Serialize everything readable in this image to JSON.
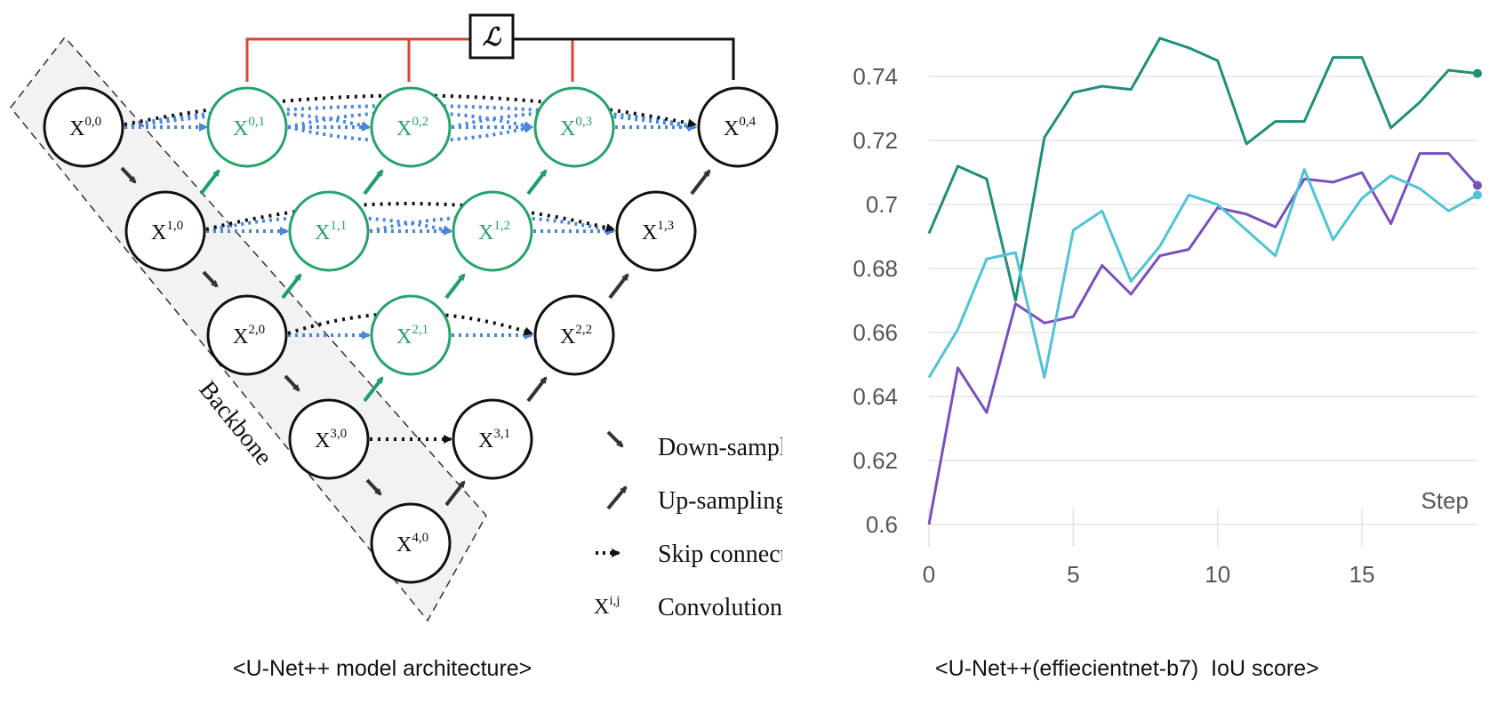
{
  "diagram": {
    "loss_symbol": "ℒ",
    "backbone_label": "Backbone",
    "nodes": [
      {
        "base": "X",
        "sup": "0,0",
        "color": "#111111"
      },
      {
        "base": "X",
        "sup": "0,1",
        "color": "#27a36a"
      },
      {
        "base": "X",
        "sup": "0,2",
        "color": "#27a36a"
      },
      {
        "base": "X",
        "sup": "0,3",
        "color": "#27a36a"
      },
      {
        "base": "X",
        "sup": "0,4",
        "color": "#111111"
      },
      {
        "base": "X",
        "sup": "1,0",
        "color": "#111111"
      },
      {
        "base": "X",
        "sup": "1,1",
        "color": "#27a36a"
      },
      {
        "base": "X",
        "sup": "1,2",
        "color": "#27a36a"
      },
      {
        "base": "X",
        "sup": "1,3",
        "color": "#111111"
      },
      {
        "base": "X",
        "sup": "2,0",
        "color": "#111111"
      },
      {
        "base": "X",
        "sup": "2,1",
        "color": "#27a36a"
      },
      {
        "base": "X",
        "sup": "2,2",
        "color": "#111111"
      },
      {
        "base": "X",
        "sup": "3,0",
        "color": "#111111"
      },
      {
        "base": "X",
        "sup": "3,1",
        "color": "#111111"
      },
      {
        "base": "X",
        "sup": "4,0",
        "color": "#111111"
      }
    ],
    "legend": [
      {
        "symbol": "down-arrow-icon",
        "label": "Down-sampling"
      },
      {
        "symbol": "up-arrow-icon",
        "label": "Up-sampling"
      },
      {
        "symbol": "skip-arrow-icon",
        "label": "Skip connection"
      },
      {
        "symbol": "X",
        "symbol_sup": "i,j",
        "label": "Convolution"
      }
    ],
    "colors": {
      "node_black": "#111111",
      "node_green": "#27a36a",
      "up_arrow": "#1f9e6a",
      "skip_blue": "#4a86e0",
      "loss_red": "#d9453b",
      "backbone_fill": "#f2f2f2"
    }
  },
  "chart_data": {
    "type": "line",
    "title": "",
    "xlabel": "Step",
    "ylabel": "",
    "xlim": [
      0,
      19
    ],
    "ylim": [
      0.6,
      0.75
    ],
    "x_ticks": [
      0,
      5,
      10,
      15
    ],
    "y_ticks": [
      0.6,
      0.62,
      0.64,
      0.66,
      0.68,
      0.7,
      0.72,
      0.74
    ],
    "y_tick_labels": [
      "0.6",
      "0.62",
      "0.64",
      "0.66",
      "0.68",
      "0.7",
      "0.72",
      "0.74"
    ],
    "grid": "horizontal",
    "series": [
      {
        "color": "#1f8f7a",
        "x": [
          0,
          1,
          2,
          3,
          4,
          5,
          6,
          7,
          8,
          9,
          10,
          11,
          12,
          13,
          14,
          15,
          16,
          17,
          18,
          19
        ],
        "values": [
          0.691,
          0.712,
          0.708,
          0.67,
          0.721,
          0.735,
          0.737,
          0.736,
          0.752,
          0.749,
          0.745,
          0.719,
          0.726,
          0.726,
          0.746,
          0.746,
          0.724,
          0.732,
          0.742,
          0.741
        ]
      },
      {
        "color": "#7a4fc0",
        "x": [
          0,
          1,
          2,
          3,
          4,
          5,
          6,
          7,
          8,
          9,
          10,
          11,
          12,
          13,
          14,
          15,
          16,
          17,
          18,
          19
        ],
        "values": [
          0.6,
          0.649,
          0.635,
          0.669,
          0.663,
          0.665,
          0.681,
          0.672,
          0.684,
          0.686,
          0.699,
          0.697,
          0.693,
          0.708,
          0.707,
          0.71,
          0.694,
          0.716,
          0.716,
          0.706
        ]
      },
      {
        "color": "#4fc3d8",
        "x": [
          0,
          1,
          2,
          3,
          4,
          5,
          6,
          7,
          8,
          9,
          10,
          11,
          12,
          13,
          14,
          15,
          16,
          17,
          18,
          19
        ],
        "values": [
          0.646,
          0.661,
          0.683,
          0.685,
          0.646,
          0.692,
          0.698,
          0.676,
          0.687,
          0.703,
          0.7,
          0.692,
          0.684,
          0.711,
          0.689,
          0.702,
          0.709,
          0.705,
          0.698,
          0.703
        ]
      }
    ]
  },
  "captions": {
    "left": "<U-Net++ model architecture>",
    "right": "<U-Net++(effiecientnet-b7)  IoU score>"
  }
}
